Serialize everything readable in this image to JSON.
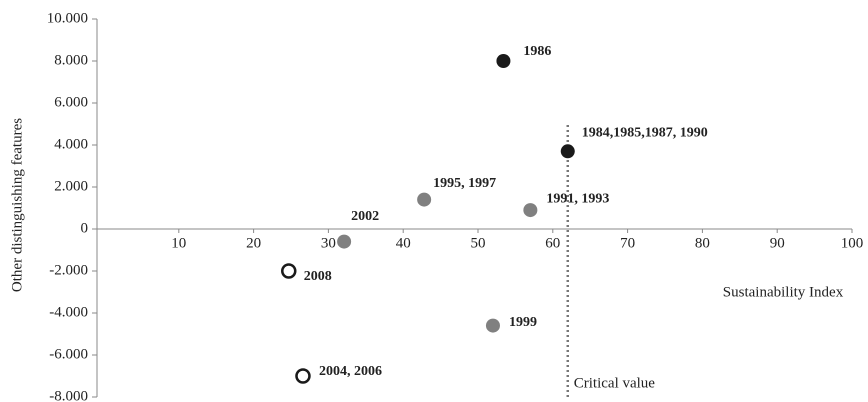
{
  "chart_data": {
    "type": "scatter",
    "x_label": "Sustainability Index",
    "y_label": "Other distinguishing features",
    "xlim": [
      0,
      100
    ],
    "xticks": [
      10,
      20,
      30,
      40,
      50,
      60,
      70,
      80,
      90,
      100
    ],
    "ylim": [
      -8000,
      10000
    ],
    "yticks": [
      {
        "value": -8000,
        "label": "-8.000"
      },
      {
        "value": -6000,
        "label": "-6.000"
      },
      {
        "value": -4000,
        "label": "-4.000"
      },
      {
        "value": -2000,
        "label": "-2.000"
      },
      0,
      {
        "value": 2000,
        "label": "2.000"
      },
      {
        "value": 4000,
        "label": "4.000"
      },
      {
        "value": 6000,
        "label": "6.000"
      },
      {
        "value": 8000,
        "label": "8.000"
      },
      {
        "value": 10000,
        "label": "10.000"
      }
    ],
    "critical_value": {
      "x": 62,
      "label": "Critical value"
    },
    "series": [
      {
        "color": "#1a1a1a",
        "hollow": false,
        "x": [
          53.4,
          62
        ],
        "values": [
          8000,
          3700
        ],
        "point_labels": [
          "1986",
          "1984,1985,1987, 1990"
        ]
      },
      {
        "color": "#808080",
        "hollow": false,
        "x": [
          42.8,
          57,
          32.1,
          52
        ],
        "values": [
          1400,
          900,
          -600,
          -4600
        ],
        "point_labels": [
          "1995, 1997",
          "1991, 1993",
          "2002",
          "1999"
        ]
      },
      {
        "color": "#1a1a1a",
        "hollow": true,
        "x": [
          24.7,
          26.6
        ],
        "values": [
          -2000,
          -7000
        ],
        "point_labels": [
          "2008",
          "2004, 2006"
        ]
      }
    ]
  }
}
